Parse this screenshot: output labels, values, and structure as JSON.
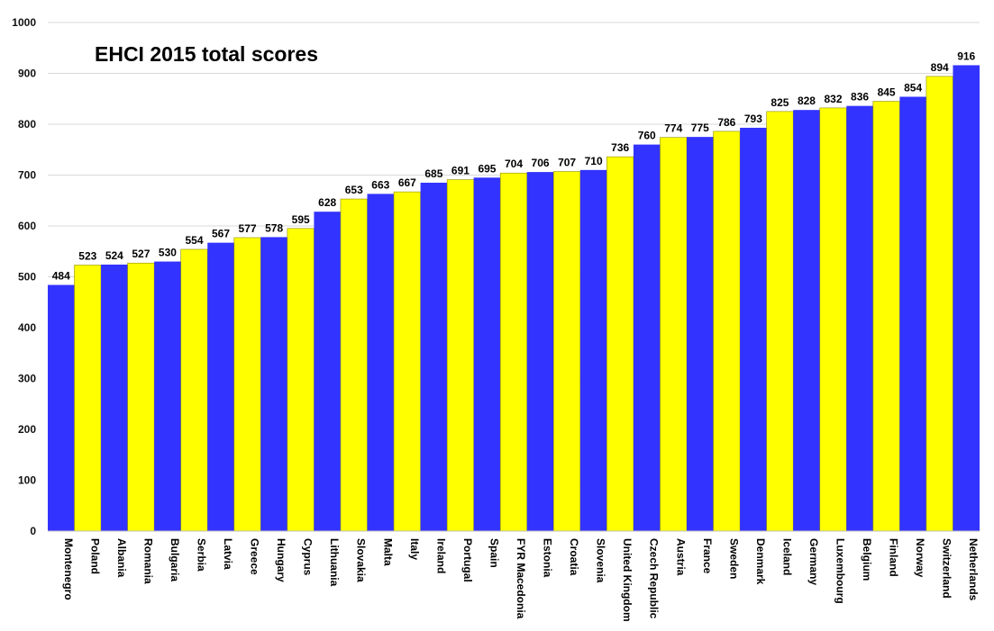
{
  "chart_data": {
    "type": "bar",
    "title": "EHCI 2015 total scores",
    "xlabel": "",
    "ylabel": "",
    "ylim": [
      0,
      1000
    ],
    "yticks": [
      0,
      100,
      200,
      300,
      400,
      500,
      600,
      700,
      800,
      900,
      1000
    ],
    "grid": true,
    "bar_colors": [
      "#3333ff",
      "#ffff00"
    ],
    "categories": [
      "Montenegro",
      "Poland",
      "Albania",
      "Romania",
      "Bulgaria",
      "Serbia",
      "Latvia",
      "Greece",
      "Hungary",
      "Cyprus",
      "Lithuania",
      "Slovakia",
      "Malta",
      "Italy",
      "Ireland",
      "Portugal",
      "Spain",
      "FYR Macedonia",
      "Estonia",
      "Croatia",
      "Slovenia",
      "United Kingdom",
      "Czech Republic",
      "Austria",
      "France",
      "Sweden",
      "Denmark",
      "Iceland",
      "Germany",
      "Luxembourg",
      "Belgium",
      "Finland",
      "Norway",
      "Switzerland",
      "Netherlands"
    ],
    "values": [
      484,
      523,
      524,
      527,
      530,
      554,
      567,
      577,
      578,
      595,
      628,
      653,
      663,
      667,
      685,
      691,
      695,
      704,
      706,
      707,
      710,
      736,
      760,
      774,
      775,
      786,
      793,
      825,
      828,
      832,
      836,
      845,
      854,
      894,
      916
    ]
  }
}
